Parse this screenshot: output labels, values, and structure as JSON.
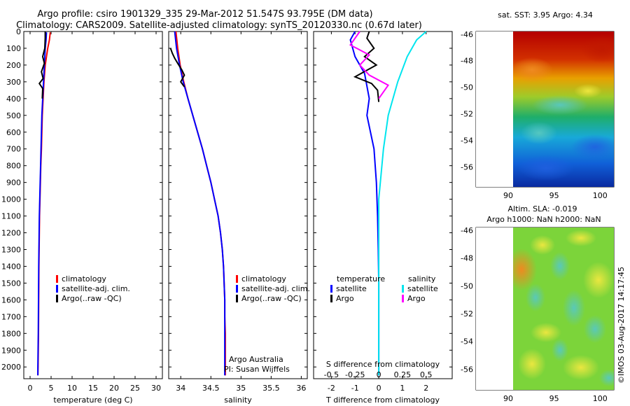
{
  "title_line1": "Argo profile: csiro 1901329_335 29-Mar-2012 51.547S 93.795E (DM data)",
  "title_line2": "Climatology: CARS2009. Satellite-adjusted climatology: synTS_20120330.nc (0.67d later)",
  "credit": "©IMOS 03-Aug-2017 14:17:45",
  "colors": {
    "climatology": "#ff0000",
    "satellite": "#0000ff",
    "argo": "#000000",
    "salinity_sat": "#00e5ee",
    "salinity_argo": "#ff00ff"
  },
  "chart_data": [
    {
      "id": "temperature",
      "type": "line",
      "xlabel": "temperature (deg C)",
      "xlim": [
        -1.5,
        31.5
      ],
      "xticks": [
        0,
        5,
        10,
        15,
        20,
        25,
        30
      ],
      "ylim": [
        0,
        2070
      ],
      "yticks": [
        0,
        100,
        200,
        300,
        400,
        500,
        600,
        700,
        800,
        900,
        1000,
        1100,
        1200,
        1300,
        1400,
        1500,
        1600,
        1700,
        1800,
        1900,
        2000
      ],
      "legend": [
        "climatology",
        "satellite-adj. clim.",
        "Argo(..raw -QC)"
      ],
      "legend_position": "lower-center",
      "series": [
        {
          "name": "climatology",
          "color": "#ff0000",
          "x": [
            4.8,
            4.6,
            4.2,
            3.9,
            3.6,
            3.3,
            3.1,
            2.9,
            2.8,
            2.7,
            2.55,
            2.45,
            2.35,
            2.25,
            2.2,
            2.1,
            2.05,
            2.0,
            1.95,
            1.9,
            1.85
          ],
          "y": [
            5,
            50,
            100,
            150,
            200,
            300,
            400,
            500,
            600,
            700,
            800,
            900,
            1000,
            1100,
            1200,
            1400,
            1600,
            1800,
            1900,
            2000,
            2050
          ]
        },
        {
          "name": "satellite-adj. clim.",
          "color": "#0000ff",
          "x": [
            3.9,
            3.8,
            3.6,
            3.5,
            3.4,
            3.2,
            3.0,
            2.8,
            2.7,
            2.6,
            2.5,
            2.4,
            2.3,
            2.2,
            2.15,
            2.05,
            2.0,
            1.95,
            1.9,
            1.85,
            1.85
          ],
          "y": [
            5,
            50,
            100,
            150,
            200,
            300,
            400,
            500,
            600,
            700,
            800,
            900,
            1000,
            1100,
            1200,
            1400,
            1600,
            1800,
            1900,
            2000,
            2050
          ]
        },
        {
          "name": "Argo(..raw -QC)",
          "color": "#000000",
          "x": [
            3.6,
            3.6,
            3.5,
            3.0,
            3.4,
            2.7,
            3.1,
            2.2,
            3.0,
            2.9
          ],
          "y": [
            0,
            40,
            100,
            150,
            190,
            240,
            280,
            310,
            340,
            400
          ]
        }
      ]
    },
    {
      "id": "salinity",
      "type": "line",
      "xlabel": "salinity",
      "xlim": [
        33.8,
        36.1
      ],
      "xticks": [
        34,
        34.5,
        35,
        35.5,
        36
      ],
      "ylim": [
        0,
        2070
      ],
      "legend": [
        "climatology",
        "satellite-adj. clim.",
        "Argo(..raw -QC)"
      ],
      "legend_position": "lower-right",
      "annotation": [
        "Argo Australia",
        "PI: Susan Wijffels"
      ],
      "series": [
        {
          "name": "climatology",
          "color": "#ff0000",
          "x": [
            33.92,
            33.95,
            33.99,
            34.05,
            34.12,
            34.2,
            34.28,
            34.36,
            34.43,
            34.5,
            34.56,
            34.62,
            34.66,
            34.69,
            34.71,
            34.72,
            34.73,
            34.73,
            34.74,
            34.74,
            34.74
          ],
          "y": [
            0,
            100,
            200,
            300,
            400,
            500,
            600,
            700,
            800,
            900,
            1000,
            1100,
            1200,
            1300,
            1400,
            1500,
            1600,
            1700,
            1800,
            1900,
            2050
          ]
        },
        {
          "name": "satellite-adj. clim.",
          "color": "#0000ff",
          "x": [
            33.9,
            33.93,
            33.98,
            34.04,
            34.12,
            34.2,
            34.28,
            34.36,
            34.43,
            34.5,
            34.56,
            34.62,
            34.66,
            34.69,
            34.71,
            34.72,
            34.73,
            34.73,
            34.73,
            34.73,
            34.73
          ],
          "y": [
            0,
            100,
            200,
            300,
            400,
            500,
            600,
            700,
            800,
            900,
            1000,
            1100,
            1200,
            1300,
            1400,
            1500,
            1600,
            1700,
            1800,
            1900,
            2050
          ]
        },
        {
          "name": "Argo(..raw -QC)",
          "color": "#000000",
          "x": [
            33.83,
            33.86,
            33.9,
            33.95,
            34.02,
            34.06,
            34.0,
            34.06
          ],
          "y": [
            100,
            130,
            160,
            190,
            230,
            260,
            300,
            330
          ]
        }
      ]
    },
    {
      "id": "difference",
      "type": "line",
      "xlabel": "T difference from climatology",
      "xlabel_top": "S difference from climatology",
      "xlim_T": [
        -2.75,
        3.1
      ],
      "xticks_T": [
        -2,
        -1,
        0,
        1,
        2
      ],
      "xticks_S": [
        "-0.5",
        "-0.25",
        "0",
        "0.25",
        "0.5"
      ],
      "ylim": [
        0,
        2070
      ],
      "legend_titles": [
        "temperature",
        "salinity"
      ],
      "legend": [
        "satellite",
        "Argo",
        "satellite",
        "Argo"
      ],
      "series": [
        {
          "name": "satellite",
          "group": "temperature",
          "color": "#0000ff",
          "x": [
            -1.0,
            -1.2,
            -1.0,
            -0.6,
            -0.4,
            -0.5,
            -0.2,
            -0.1,
            -0.05,
            -0.02,
            0,
            0,
            0
          ],
          "y": [
            0,
            50,
            150,
            250,
            400,
            500,
            700,
            900,
            1100,
            1300,
            1500,
            1800,
            2050
          ]
        },
        {
          "name": "Argo",
          "group": "temperature",
          "color": "#000000",
          "x": [
            -0.4,
            -0.5,
            -0.2,
            -0.6,
            -0.1,
            -1.0,
            -0.3,
            -0.05,
            0
          ],
          "y": [
            0,
            40,
            100,
            150,
            200,
            270,
            310,
            350,
            420
          ]
        },
        {
          "name": "satellite",
          "group": "salinity",
          "color": "#00e5ee",
          "x": [
            0.5,
            0.4,
            0.3,
            0.2,
            0.1,
            0.05,
            0,
            0,
            0,
            0
          ],
          "y": [
            0,
            50,
            150,
            300,
            500,
            700,
            1000,
            1400,
            1800,
            2050
          ]
        },
        {
          "name": "Argo",
          "group": "salinity",
          "color": "#ff00ff",
          "x": [
            -0.2,
            -0.3,
            -0.1,
            -0.2,
            -0.1,
            0.1,
            0
          ],
          "y": [
            0,
            80,
            140,
            200,
            260,
            320,
            400
          ]
        }
      ]
    },
    {
      "id": "sst_map",
      "type": "heatmap",
      "title": "sat. SST: 3.95 Argo: 4.34",
      "xticks": [
        90,
        95,
        100
      ],
      "yticks": [
        -46,
        -48,
        -50,
        -52,
        -54,
        -56
      ],
      "xlim": [
        86.5,
        101.5
      ],
      "ylim": [
        -57.5,
        -45.8
      ],
      "marker": {
        "lon": 93.795,
        "lat": -51.547
      }
    },
    {
      "id": "sla_map",
      "type": "heatmap",
      "title_line1": "Altim. SLA: -0.019",
      "title_line2": "Argo h1000: NaN h2000: NaN",
      "xticks": [
        90,
        95,
        100
      ],
      "yticks": [
        -46,
        -48,
        -50,
        -52,
        -54,
        -56
      ],
      "xlim": [
        86.5,
        101.5
      ],
      "ylim": [
        -57.5,
        -45.8
      ],
      "marker": {
        "lon": 93.795,
        "lat": -51.547
      }
    }
  ]
}
